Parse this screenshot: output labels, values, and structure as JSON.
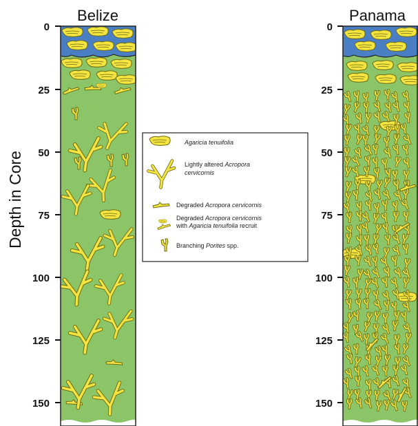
{
  "columns": [
    {
      "title": "Belize"
    },
    {
      "title": "Panama"
    }
  ],
  "axis": {
    "title": "Depth in Core",
    "ticks": [
      "0",
      "25",
      "50",
      "75",
      "100",
      "125",
      "150"
    ]
  },
  "legend": {
    "items": [
      {
        "italic": "Agaricia tenuifolia",
        "pre": "",
        "post": ""
      },
      {
        "pre": "Lightly altered ",
        "italic": "Acropora",
        "line2_italic": "cervicornis"
      },
      {
        "pre": "Degraded ",
        "italic": "Acropora cervicornis",
        "post": ""
      },
      {
        "pre": "Degraded ",
        "italic": "Acropora cervicornis",
        "line2_pre": "with ",
        "line2_italic": "Agaricia tenuifolia",
        "line2_post": " recruit"
      },
      {
        "pre": "Branching ",
        "italic": "Porites",
        "post": " spp."
      }
    ]
  },
  "colors": {
    "water": "#4a7fc3",
    "sediment": "#8cc468",
    "coral": "#f3e441",
    "coral_outline": "#6e6a12"
  }
}
